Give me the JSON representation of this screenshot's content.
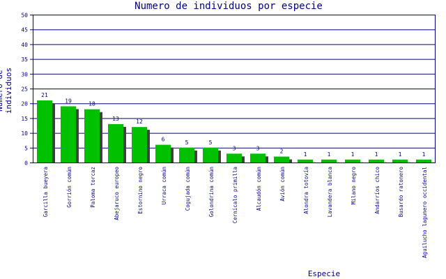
{
  "chart_data": {
    "type": "bar",
    "title": "Numero de individuos por especie",
    "xlabel": "Especie",
    "ylabel": "Numero de individuos",
    "ylim": [
      0,
      50
    ],
    "yticks": [
      0,
      5,
      10,
      15,
      20,
      25,
      30,
      35,
      40,
      45,
      50
    ],
    "grid": true,
    "categories": [
      "Garcilla bueyera",
      "Gorrión común",
      "Paloma torcaz",
      "Abejaruco europeo",
      "Estornino negro",
      "Urraca común",
      "Cogujada común",
      "Golondrina común",
      "Cernícalo primilla",
      "Alcaudón común",
      "Avión común",
      "Alondra totovía",
      "Lavandera blanca",
      "Milano negro",
      "Andarríos chico",
      "Busardo ratonero",
      "Aguilucho lagunero occidental"
    ],
    "values": [
      21,
      19,
      18,
      13,
      12,
      6,
      5,
      5,
      3,
      3,
      2,
      1,
      1,
      1,
      1,
      1,
      1
    ],
    "colors": {
      "bar": "#00c000",
      "shadow": "#404040",
      "axis": "#000080",
      "grid": "#000080",
      "text": "#000080"
    }
  }
}
